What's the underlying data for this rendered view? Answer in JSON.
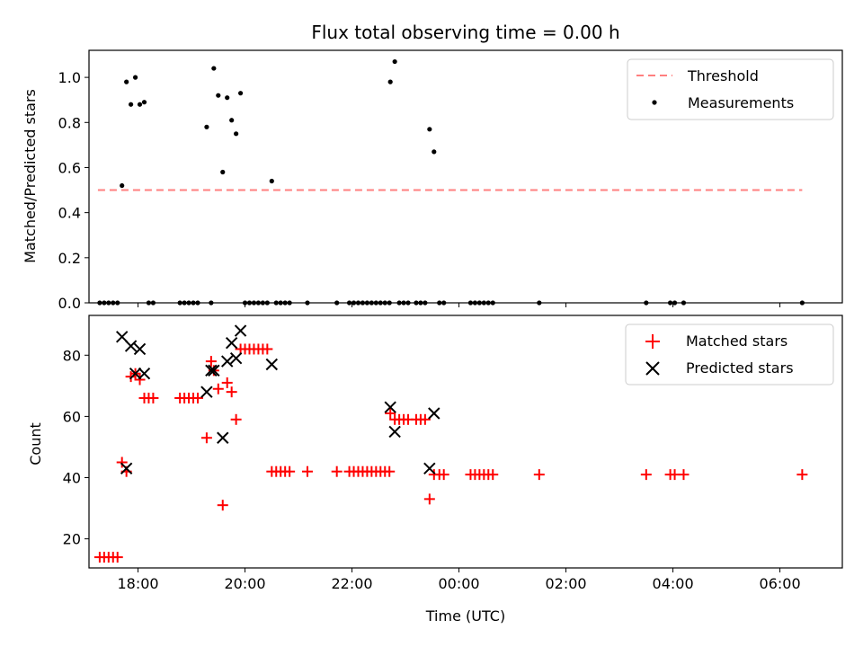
{
  "figure": {
    "title": "Flux total observing time = 0.00 h",
    "xlabel": "Time (UTC)"
  },
  "chart_data": [
    {
      "type": "scatter",
      "ylabel": "Matched/Predicted stars",
      "xlim": [
        "17:05",
        "07:10"
      ],
      "ylim": [
        0,
        1.12
      ],
      "yticks": [
        "0.0",
        "0.2",
        "0.4",
        "0.6",
        "0.8",
        "1.0"
      ],
      "xticks": [
        "18:00",
        "20:00",
        "22:00",
        "00:00",
        "02:00",
        "04:00",
        "06:00"
      ],
      "legend": {
        "placement": "top-right",
        "entries": [
          "Threshold",
          "Measurements"
        ]
      },
      "series": [
        {
          "name": "Threshold",
          "style": "dashed-line",
          "color": "#ff7f7f",
          "points": [
            [
              "17:15",
              0.5
            ],
            [
              "06:25",
              0.5
            ]
          ]
        },
        {
          "name": "Measurements",
          "style": "dot",
          "color": "#000000",
          "points": [
            [
              "17:17",
              0
            ],
            [
              "17:22",
              0
            ],
            [
              "17:27",
              0
            ],
            [
              "17:32",
              0
            ],
            [
              "17:37",
              0
            ],
            [
              "17:42",
              0.52
            ],
            [
              "17:47",
              0.98
            ],
            [
              "17:52",
              0.88
            ],
            [
              "17:57",
              1.0
            ],
            [
              "18:02",
              0.88
            ],
            [
              "18:07",
              0.89
            ],
            [
              "18:12",
              0
            ],
            [
              "18:17",
              0
            ],
            [
              "18:47",
              0
            ],
            [
              "18:52",
              0
            ],
            [
              "18:57",
              0
            ],
            [
              "19:02",
              0
            ],
            [
              "19:07",
              0
            ],
            [
              "19:17",
              0.78
            ],
            [
              "19:22",
              0
            ],
            [
              "19:25",
              1.04
            ],
            [
              "19:30",
              0.92
            ],
            [
              "19:35",
              0.58
            ],
            [
              "19:40",
              0.91
            ],
            [
              "19:45",
              0.81
            ],
            [
              "19:50",
              0.75
            ],
            [
              "19:55",
              0.93
            ],
            [
              "20:00",
              0
            ],
            [
              "20:05",
              0
            ],
            [
              "20:10",
              0
            ],
            [
              "20:15",
              0
            ],
            [
              "20:20",
              0
            ],
            [
              "20:25",
              0
            ],
            [
              "20:30",
              0.54
            ],
            [
              "20:35",
              0
            ],
            [
              "20:40",
              0
            ],
            [
              "20:45",
              0
            ],
            [
              "20:50",
              0
            ],
            [
              "21:10",
              0
            ],
            [
              "21:43",
              0
            ],
            [
              "21:57",
              0
            ],
            [
              "22:02",
              0
            ],
            [
              "22:07",
              0
            ],
            [
              "22:12",
              0
            ],
            [
              "22:17",
              0
            ],
            [
              "22:22",
              0
            ],
            [
              "22:27",
              0
            ],
            [
              "22:32",
              0
            ],
            [
              "22:37",
              0
            ],
            [
              "22:42",
              0
            ],
            [
              "22:43",
              0.98
            ],
            [
              "22:48",
              1.07
            ],
            [
              "22:53",
              0
            ],
            [
              "22:58",
              0
            ],
            [
              "23:03",
              0
            ],
            [
              "23:12",
              0
            ],
            [
              "23:17",
              0
            ],
            [
              "23:22",
              0
            ],
            [
              "23:27",
              0.77
            ],
            [
              "23:32",
              0.67
            ],
            [
              "23:38",
              0
            ],
            [
              "23:43",
              0
            ],
            [
              "00:13",
              0
            ],
            [
              "00:18",
              0
            ],
            [
              "00:23",
              0
            ],
            [
              "00:28",
              0
            ],
            [
              "00:33",
              0
            ],
            [
              "00:38",
              0
            ],
            [
              "01:30",
              0
            ],
            [
              "03:30",
              0
            ],
            [
              "03:57",
              0
            ],
            [
              "04:02",
              0
            ],
            [
              "04:12",
              0
            ],
            [
              "06:25",
              0
            ]
          ]
        }
      ]
    },
    {
      "type": "scatter",
      "ylabel": "Count",
      "xlim": [
        "17:05",
        "07:10"
      ],
      "ylim": [
        10.5,
        93
      ],
      "yticks": [
        "20",
        "40",
        "60",
        "80"
      ],
      "xticks": [
        "18:00",
        "20:00",
        "22:00",
        "00:00",
        "02:00",
        "04:00",
        "06:00"
      ],
      "legend": {
        "placement": "top-right",
        "entries": [
          "Matched stars",
          "Predicted stars"
        ]
      },
      "series": [
        {
          "name": "Matched stars",
          "marker": "plus",
          "color": "#ff0000",
          "points": [
            [
              "17:17",
              14
            ],
            [
              "17:22",
              14
            ],
            [
              "17:27",
              14
            ],
            [
              "17:32",
              14
            ],
            [
              "17:37",
              14
            ],
            [
              "17:42",
              45
            ],
            [
              "17:47",
              42
            ],
            [
              "17:52",
              73
            ],
            [
              "17:57",
              74
            ],
            [
              "18:02",
              72
            ],
            [
              "18:07",
              66
            ],
            [
              "18:12",
              66
            ],
            [
              "18:17",
              66
            ],
            [
              "18:47",
              66
            ],
            [
              "18:52",
              66
            ],
            [
              "18:57",
              66
            ],
            [
              "19:02",
              66
            ],
            [
              "19:07",
              66
            ],
            [
              "19:17",
              53
            ],
            [
              "19:22",
              78
            ],
            [
              "19:25",
              75
            ],
            [
              "19:30",
              69
            ],
            [
              "19:35",
              31
            ],
            [
              "19:40",
              71
            ],
            [
              "19:45",
              68
            ],
            [
              "19:50",
              59
            ],
            [
              "19:55",
              82
            ],
            [
              "20:00",
              82
            ],
            [
              "20:05",
              82
            ],
            [
              "20:10",
              82
            ],
            [
              "20:15",
              82
            ],
            [
              "20:20",
              82
            ],
            [
              "20:25",
              82
            ],
            [
              "20:30",
              42
            ],
            [
              "20:35",
              42
            ],
            [
              "20:40",
              42
            ],
            [
              "20:45",
              42
            ],
            [
              "20:50",
              42
            ],
            [
              "21:10",
              42
            ],
            [
              "21:43",
              42
            ],
            [
              "21:57",
              42
            ],
            [
              "22:02",
              42
            ],
            [
              "22:07",
              42
            ],
            [
              "22:12",
              42
            ],
            [
              "22:17",
              42
            ],
            [
              "22:22",
              42
            ],
            [
              "22:27",
              42
            ],
            [
              "22:32",
              42
            ],
            [
              "22:37",
              42
            ],
            [
              "22:42",
              42
            ],
            [
              "22:43",
              61
            ],
            [
              "22:48",
              59
            ],
            [
              "22:53",
              59
            ],
            [
              "22:58",
              59
            ],
            [
              "23:03",
              59
            ],
            [
              "23:12",
              59
            ],
            [
              "23:17",
              59
            ],
            [
              "23:22",
              59
            ],
            [
              "23:27",
              33
            ],
            [
              "23:32",
              41
            ],
            [
              "23:38",
              41
            ],
            [
              "23:43",
              41
            ],
            [
              "00:13",
              41
            ],
            [
              "00:18",
              41
            ],
            [
              "00:23",
              41
            ],
            [
              "00:28",
              41
            ],
            [
              "00:33",
              41
            ],
            [
              "00:38",
              41
            ],
            [
              "01:30",
              41
            ],
            [
              "03:30",
              41
            ],
            [
              "03:57",
              41
            ],
            [
              "04:02",
              41
            ],
            [
              "04:12",
              41
            ],
            [
              "06:25",
              41
            ]
          ]
        },
        {
          "name": "Predicted stars",
          "marker": "x",
          "color": "#000000",
          "points": [
            [
              "17:42",
              86
            ],
            [
              "17:47",
              43
            ],
            [
              "17:52",
              83
            ],
            [
              "17:57",
              74
            ],
            [
              "18:02",
              82
            ],
            [
              "18:07",
              74
            ],
            [
              "19:17",
              68
            ],
            [
              "19:22",
              75
            ],
            [
              "19:25",
              75
            ],
            [
              "19:35",
              53
            ],
            [
              "19:40",
              78
            ],
            [
              "19:45",
              84
            ],
            [
              "19:50",
              79
            ],
            [
              "19:55",
              88
            ],
            [
              "20:30",
              77
            ],
            [
              "22:43",
              63
            ],
            [
              "22:48",
              55
            ],
            [
              "23:27",
              43
            ],
            [
              "23:32",
              61
            ]
          ]
        }
      ]
    }
  ]
}
